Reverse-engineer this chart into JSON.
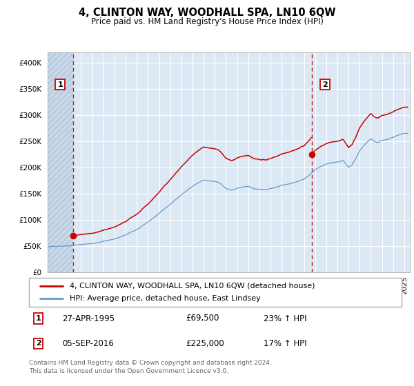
{
  "title": "4, CLINTON WAY, WOODHALL SPA, LN10 6QW",
  "subtitle": "Price paid vs. HM Land Registry's House Price Index (HPI)",
  "xlim_start": 1993.0,
  "xlim_end": 2025.5,
  "ylim": [
    0,
    420000
  ],
  "yticks": [
    0,
    50000,
    100000,
    150000,
    200000,
    250000,
    300000,
    350000,
    400000
  ],
  "ytick_labels": [
    "£0",
    "£50K",
    "£100K",
    "£150K",
    "£200K",
    "£250K",
    "£300K",
    "£350K",
    "£400K"
  ],
  "background_color": "#ffffff",
  "plot_bg_color": "#dce9f5",
  "grid_color": "#ffffff",
  "sale1_date": 1995.32,
  "sale1_price": 69500,
  "sale2_date": 2016.68,
  "sale2_price": 225000,
  "legend1": "4, CLINTON WAY, WOODHALL SPA, LN10 6QW (detached house)",
  "legend2": "HPI: Average price, detached house, East Lindsey",
  "ann1_label": "1",
  "ann1_date": "27-APR-1995",
  "ann1_price": "£69,500",
  "ann1_hpi": "23% ↑ HPI",
  "ann2_label": "2",
  "ann2_date": "05-SEP-2016",
  "ann2_price": "£225,000",
  "ann2_hpi": "17% ↑ HPI",
  "footer": "Contains HM Land Registry data © Crown copyright and database right 2024.\nThis data is licensed under the Open Government Licence v3.0.",
  "line_red": "#cc0000",
  "line_blue": "#6699cc",
  "xticks": [
    1993,
    1994,
    1995,
    1996,
    1997,
    1998,
    1999,
    2000,
    2001,
    2002,
    2003,
    2004,
    2005,
    2006,
    2007,
    2008,
    2009,
    2010,
    2011,
    2012,
    2013,
    2014,
    2015,
    2016,
    2017,
    2018,
    2019,
    2020,
    2021,
    2022,
    2023,
    2024,
    2025
  ],
  "hpi_years": [
    1993,
    1994,
    1995,
    1996,
    1997,
    1998,
    1999,
    2000,
    2001,
    2002,
    2003,
    2004,
    2005,
    2006,
    2007,
    2008,
    2008.5,
    2009,
    2009.5,
    2010,
    2010.5,
    2011,
    2011.5,
    2012,
    2012.5,
    2013,
    2013.5,
    2014,
    2014.5,
    2015,
    2015.5,
    2016,
    2016.5,
    2017,
    2017.5,
    2018,
    2018.5,
    2019,
    2019.5,
    2020,
    2020.3,
    2020.6,
    2021,
    2021.5,
    2022,
    2022.3,
    2022.6,
    2023,
    2023.5,
    2024,
    2024.5,
    2025
  ],
  "hpi_prices": [
    48000,
    50000,
    52000,
    54000,
    56000,
    60000,
    65000,
    72000,
    82000,
    95000,
    112000,
    130000,
    148000,
    163000,
    175000,
    172000,
    168000,
    158000,
    155000,
    158000,
    160000,
    162000,
    158000,
    157000,
    156000,
    158000,
    161000,
    165000,
    168000,
    171000,
    174000,
    178000,
    186000,
    196000,
    202000,
    206000,
    208000,
    210000,
    213000,
    200000,
    205000,
    215000,
    232000,
    245000,
    255000,
    250000,
    248000,
    252000,
    255000,
    258000,
    262000,
    265000
  ]
}
